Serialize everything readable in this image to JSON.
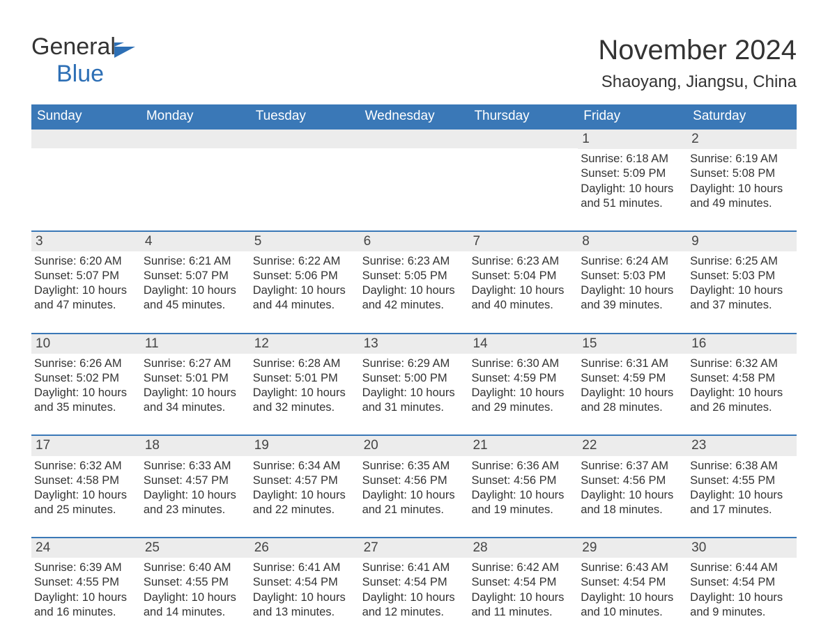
{
  "brand": {
    "name_part1": "General",
    "name_part2": "Blue",
    "accent_color": "#2d6fb5"
  },
  "header": {
    "title": "November 2024",
    "subtitle": "Shaoyang, Jiangsu, China"
  },
  "colors": {
    "header_row_bg": "#3a78b7",
    "header_row_text": "#ffffff",
    "day_band_bg": "#ececec",
    "week_divider": "#3a78b7",
    "body_text": "#333333",
    "background": "#ffffff"
  },
  "typography": {
    "title_fontsize": 40,
    "subtitle_fontsize": 24,
    "dow_fontsize": 19,
    "daynum_fontsize": 19,
    "body_fontsize": 16.5
  },
  "days_of_week": [
    "Sunday",
    "Monday",
    "Tuesday",
    "Wednesday",
    "Thursday",
    "Friday",
    "Saturday"
  ],
  "weeks": [
    [
      {
        "empty": true
      },
      {
        "empty": true
      },
      {
        "empty": true
      },
      {
        "empty": true
      },
      {
        "empty": true
      },
      {
        "day": "1",
        "sunrise": "Sunrise: 6:18 AM",
        "sunset": "Sunset: 5:09 PM",
        "daylight1": "Daylight: 10 hours",
        "daylight2": "and 51 minutes."
      },
      {
        "day": "2",
        "sunrise": "Sunrise: 6:19 AM",
        "sunset": "Sunset: 5:08 PM",
        "daylight1": "Daylight: 10 hours",
        "daylight2": "and 49 minutes."
      }
    ],
    [
      {
        "day": "3",
        "sunrise": "Sunrise: 6:20 AM",
        "sunset": "Sunset: 5:07 PM",
        "daylight1": "Daylight: 10 hours",
        "daylight2": "and 47 minutes."
      },
      {
        "day": "4",
        "sunrise": "Sunrise: 6:21 AM",
        "sunset": "Sunset: 5:07 PM",
        "daylight1": "Daylight: 10 hours",
        "daylight2": "and 45 minutes."
      },
      {
        "day": "5",
        "sunrise": "Sunrise: 6:22 AM",
        "sunset": "Sunset: 5:06 PM",
        "daylight1": "Daylight: 10 hours",
        "daylight2": "and 44 minutes."
      },
      {
        "day": "6",
        "sunrise": "Sunrise: 6:23 AM",
        "sunset": "Sunset: 5:05 PM",
        "daylight1": "Daylight: 10 hours",
        "daylight2": "and 42 minutes."
      },
      {
        "day": "7",
        "sunrise": "Sunrise: 6:23 AM",
        "sunset": "Sunset: 5:04 PM",
        "daylight1": "Daylight: 10 hours",
        "daylight2": "and 40 minutes."
      },
      {
        "day": "8",
        "sunrise": "Sunrise: 6:24 AM",
        "sunset": "Sunset: 5:03 PM",
        "daylight1": "Daylight: 10 hours",
        "daylight2": "and 39 minutes."
      },
      {
        "day": "9",
        "sunrise": "Sunrise: 6:25 AM",
        "sunset": "Sunset: 5:03 PM",
        "daylight1": "Daylight: 10 hours",
        "daylight2": "and 37 minutes."
      }
    ],
    [
      {
        "day": "10",
        "sunrise": "Sunrise: 6:26 AM",
        "sunset": "Sunset: 5:02 PM",
        "daylight1": "Daylight: 10 hours",
        "daylight2": "and 35 minutes."
      },
      {
        "day": "11",
        "sunrise": "Sunrise: 6:27 AM",
        "sunset": "Sunset: 5:01 PM",
        "daylight1": "Daylight: 10 hours",
        "daylight2": "and 34 minutes."
      },
      {
        "day": "12",
        "sunrise": "Sunrise: 6:28 AM",
        "sunset": "Sunset: 5:01 PM",
        "daylight1": "Daylight: 10 hours",
        "daylight2": "and 32 minutes."
      },
      {
        "day": "13",
        "sunrise": "Sunrise: 6:29 AM",
        "sunset": "Sunset: 5:00 PM",
        "daylight1": "Daylight: 10 hours",
        "daylight2": "and 31 minutes."
      },
      {
        "day": "14",
        "sunrise": "Sunrise: 6:30 AM",
        "sunset": "Sunset: 4:59 PM",
        "daylight1": "Daylight: 10 hours",
        "daylight2": "and 29 minutes."
      },
      {
        "day": "15",
        "sunrise": "Sunrise: 6:31 AM",
        "sunset": "Sunset: 4:59 PM",
        "daylight1": "Daylight: 10 hours",
        "daylight2": "and 28 minutes."
      },
      {
        "day": "16",
        "sunrise": "Sunrise: 6:32 AM",
        "sunset": "Sunset: 4:58 PM",
        "daylight1": "Daylight: 10 hours",
        "daylight2": "and 26 minutes."
      }
    ],
    [
      {
        "day": "17",
        "sunrise": "Sunrise: 6:32 AM",
        "sunset": "Sunset: 4:58 PM",
        "daylight1": "Daylight: 10 hours",
        "daylight2": "and 25 minutes."
      },
      {
        "day": "18",
        "sunrise": "Sunrise: 6:33 AM",
        "sunset": "Sunset: 4:57 PM",
        "daylight1": "Daylight: 10 hours",
        "daylight2": "and 23 minutes."
      },
      {
        "day": "19",
        "sunrise": "Sunrise: 6:34 AM",
        "sunset": "Sunset: 4:57 PM",
        "daylight1": "Daylight: 10 hours",
        "daylight2": "and 22 minutes."
      },
      {
        "day": "20",
        "sunrise": "Sunrise: 6:35 AM",
        "sunset": "Sunset: 4:56 PM",
        "daylight1": "Daylight: 10 hours",
        "daylight2": "and 21 minutes."
      },
      {
        "day": "21",
        "sunrise": "Sunrise: 6:36 AM",
        "sunset": "Sunset: 4:56 PM",
        "daylight1": "Daylight: 10 hours",
        "daylight2": "and 19 minutes."
      },
      {
        "day": "22",
        "sunrise": "Sunrise: 6:37 AM",
        "sunset": "Sunset: 4:56 PM",
        "daylight1": "Daylight: 10 hours",
        "daylight2": "and 18 minutes."
      },
      {
        "day": "23",
        "sunrise": "Sunrise: 6:38 AM",
        "sunset": "Sunset: 4:55 PM",
        "daylight1": "Daylight: 10 hours",
        "daylight2": "and 17 minutes."
      }
    ],
    [
      {
        "day": "24",
        "sunrise": "Sunrise: 6:39 AM",
        "sunset": "Sunset: 4:55 PM",
        "daylight1": "Daylight: 10 hours",
        "daylight2": "and 16 minutes."
      },
      {
        "day": "25",
        "sunrise": "Sunrise: 6:40 AM",
        "sunset": "Sunset: 4:55 PM",
        "daylight1": "Daylight: 10 hours",
        "daylight2": "and 14 minutes."
      },
      {
        "day": "26",
        "sunrise": "Sunrise: 6:41 AM",
        "sunset": "Sunset: 4:54 PM",
        "daylight1": "Daylight: 10 hours",
        "daylight2": "and 13 minutes."
      },
      {
        "day": "27",
        "sunrise": "Sunrise: 6:41 AM",
        "sunset": "Sunset: 4:54 PM",
        "daylight1": "Daylight: 10 hours",
        "daylight2": "and 12 minutes."
      },
      {
        "day": "28",
        "sunrise": "Sunrise: 6:42 AM",
        "sunset": "Sunset: 4:54 PM",
        "daylight1": "Daylight: 10 hours",
        "daylight2": "and 11 minutes."
      },
      {
        "day": "29",
        "sunrise": "Sunrise: 6:43 AM",
        "sunset": "Sunset: 4:54 PM",
        "daylight1": "Daylight: 10 hours",
        "daylight2": "and 10 minutes."
      },
      {
        "day": "30",
        "sunrise": "Sunrise: 6:44 AM",
        "sunset": "Sunset: 4:54 PM",
        "daylight1": "Daylight: 10 hours",
        "daylight2": "and 9 minutes."
      }
    ]
  ]
}
